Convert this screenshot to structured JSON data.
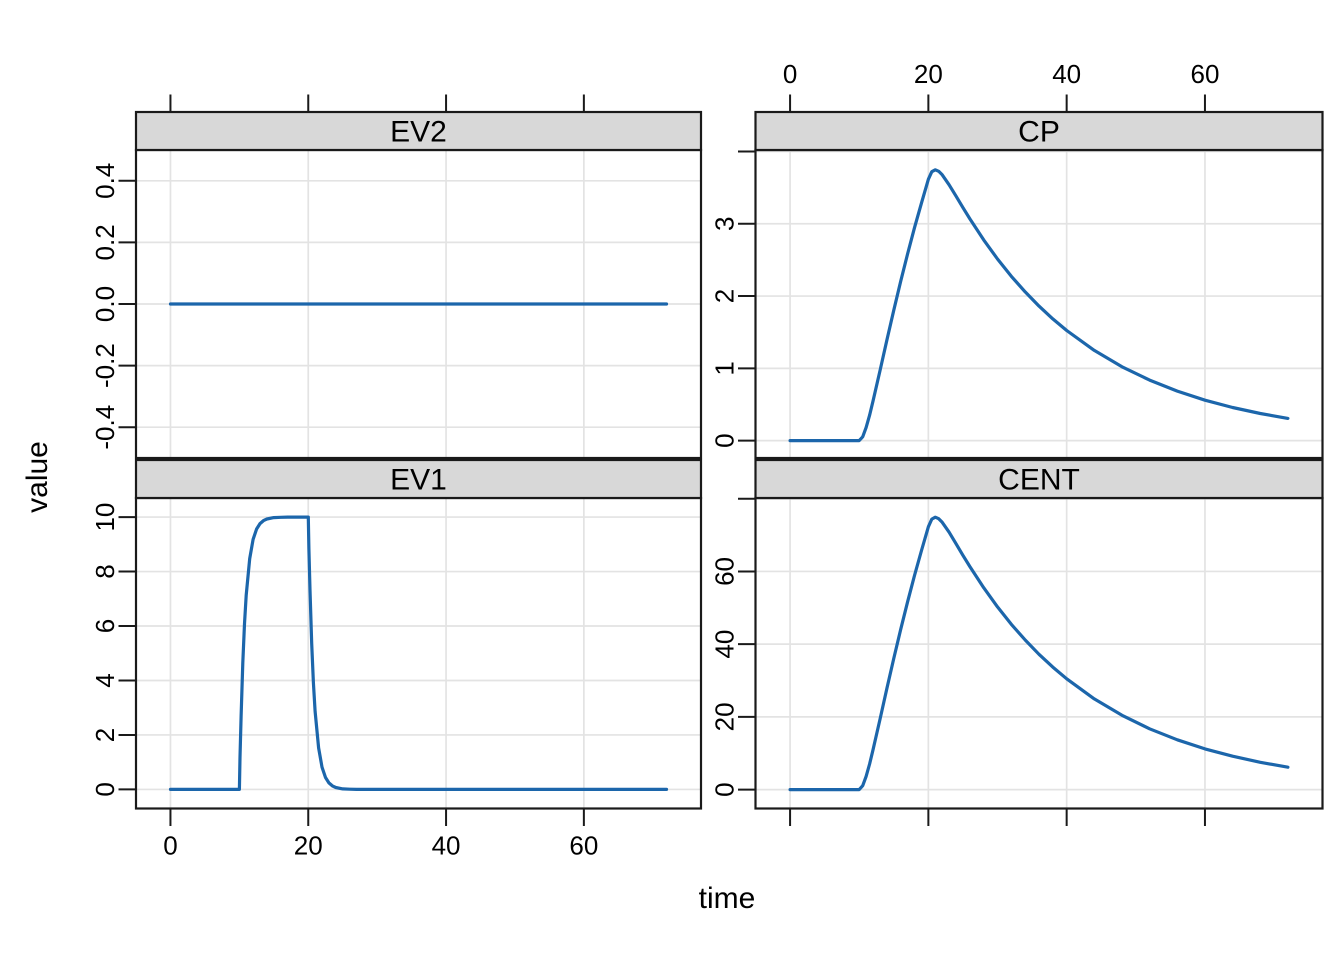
{
  "figure": {
    "xlabel": "time",
    "ylabel": "value"
  },
  "chart_data": {
    "type": "line",
    "title": "",
    "layout_hint": "2x2 lattice facets, grid on, no legend, alternating axis labels",
    "x": {
      "label": "time",
      "lim": [
        -5,
        77
      ],
      "ticks": [
        0,
        20,
        40,
        60
      ],
      "tick_labels": [
        "0",
        "20",
        "40",
        "60"
      ]
    },
    "style": {
      "line_color": "#1c66ab",
      "grid_color": "#e3e3e3",
      "strip_bg": "#d8d8d8",
      "border_color": "#1a1a1a",
      "tick_color": "#1a1a1a",
      "text_color": "#000000",
      "background": "#ffffff"
    },
    "panels": [
      {
        "name": "EV2",
        "row": 0,
        "col": 0,
        "x_axis_side": "top",
        "x_labels_shown": false,
        "ylim": [
          -0.5,
          0.5
        ],
        "y_ticks": [
          {
            "v": 0.4,
            "label": "0.4"
          },
          {
            "v": 0.2,
            "label": "0.2"
          },
          {
            "v": 0.0,
            "label": "0.0"
          },
          {
            "v": -0.2,
            "label": "-0.2"
          },
          {
            "v": -0.4,
            "label": "-0.4"
          }
        ],
        "points": [
          [
            0,
            0
          ],
          [
            72,
            0
          ]
        ]
      },
      {
        "name": "CP",
        "row": 0,
        "col": 1,
        "x_axis_side": "top",
        "x_labels_shown": true,
        "ylim": [
          -0.24,
          4.02
        ],
        "y_ticks": [
          {
            "v": 0,
            "label": "0"
          },
          {
            "v": 1,
            "label": "1"
          },
          {
            "v": 2,
            "label": "2"
          },
          {
            "v": 3,
            "label": "3"
          },
          {
            "v": 4,
            "label": ""
          }
        ],
        "points": [
          [
            0,
            0
          ],
          [
            5,
            0
          ],
          [
            9.5,
            0
          ],
          [
            10,
            0
          ],
          [
            10.5,
            0.053
          ],
          [
            11,
            0.181
          ],
          [
            11.5,
            0.352
          ],
          [
            12,
            0.547
          ],
          [
            13,
            0.967
          ],
          [
            14,
            1.392
          ],
          [
            15,
            1.806
          ],
          [
            16,
            2.204
          ],
          [
            17,
            2.583
          ],
          [
            18,
            2.945
          ],
          [
            19,
            3.289
          ],
          [
            20,
            3.616
          ],
          [
            20.5,
            3.72
          ],
          [
            21,
            3.746
          ],
          [
            21.5,
            3.725
          ],
          [
            22,
            3.677
          ],
          [
            23,
            3.539
          ],
          [
            24,
            3.382
          ],
          [
            25,
            3.223
          ],
          [
            26,
            3.067
          ],
          [
            28,
            2.776
          ],
          [
            30,
            2.512
          ],
          [
            32,
            2.273
          ],
          [
            34,
            2.057
          ],
          [
            36,
            1.861
          ],
          [
            38,
            1.684
          ],
          [
            40,
            1.524
          ],
          [
            44,
            1.248
          ],
          [
            48,
            1.022
          ],
          [
            52,
            0.837
          ],
          [
            56,
            0.685
          ],
          [
            60,
            0.56
          ],
          [
            64,
            0.459
          ],
          [
            68,
            0.376
          ],
          [
            72,
            0.308
          ]
        ]
      },
      {
        "name": "EV1",
        "row": 1,
        "col": 0,
        "x_axis_side": "bottom",
        "x_labels_shown": true,
        "ylim": [
          -0.7,
          10.7
        ],
        "y_ticks": [
          {
            "v": 0,
            "label": "0"
          },
          {
            "v": 2,
            "label": "2"
          },
          {
            "v": 4,
            "label": "4"
          },
          {
            "v": 6,
            "label": "6"
          },
          {
            "v": 8,
            "label": "8"
          },
          {
            "v": 10,
            "label": "10"
          }
        ],
        "points": [
          [
            0,
            0
          ],
          [
            5,
            0
          ],
          [
            9.9,
            0
          ],
          [
            10,
            0
          ],
          [
            10.1,
            1.18
          ],
          [
            10.25,
            2.68
          ],
          [
            10.5,
            4.65
          ],
          [
            10.75,
            6.08
          ],
          [
            11,
            7.13
          ],
          [
            11.5,
            8.47
          ],
          [
            12,
            9.18
          ],
          [
            12.5,
            9.56
          ],
          [
            13,
            9.76
          ],
          [
            13.5,
            9.87
          ],
          [
            14,
            9.93
          ],
          [
            15,
            9.98
          ],
          [
            16,
            9.99
          ],
          [
            17,
            10
          ],
          [
            20,
            10
          ],
          [
            20.1,
            8.83
          ],
          [
            20.25,
            7.32
          ],
          [
            20.5,
            5.35
          ],
          [
            20.75,
            3.92
          ],
          [
            21,
            2.87
          ],
          [
            21.5,
            1.53
          ],
          [
            22,
            0.82
          ],
          [
            22.5,
            0.44
          ],
          [
            23,
            0.24
          ],
          [
            23.5,
            0.13
          ],
          [
            24,
            0.07
          ],
          [
            25,
            0.02
          ],
          [
            26,
            0.01
          ],
          [
            27,
            0
          ],
          [
            30,
            0
          ],
          [
            40,
            0
          ],
          [
            50,
            0
          ],
          [
            60,
            0
          ],
          [
            72,
            0
          ]
        ]
      },
      {
        "name": "CENT",
        "row": 1,
        "col": 1,
        "x_axis_side": "bottom",
        "x_labels_shown": false,
        "ylim": [
          -5.2,
          80.2
        ],
        "y_ticks": [
          {
            "v": 0,
            "label": "0"
          },
          {
            "v": 20,
            "label": "20"
          },
          {
            "v": 40,
            "label": "40"
          },
          {
            "v": 60,
            "label": "60"
          },
          {
            "v": 80,
            "label": ""
          }
        ],
        "points": [
          [
            0,
            0
          ],
          [
            5,
            0
          ],
          [
            9.5,
            0
          ],
          [
            10,
            0
          ],
          [
            10.5,
            1.06
          ],
          [
            11,
            3.62
          ],
          [
            11.5,
            7.04
          ],
          [
            12,
            10.93
          ],
          [
            13,
            19.33
          ],
          [
            14,
            27.83
          ],
          [
            15,
            36.11
          ],
          [
            16,
            44.07
          ],
          [
            17,
            51.65
          ],
          [
            18,
            58.89
          ],
          [
            19,
            65.77
          ],
          [
            20,
            72.31
          ],
          [
            20.5,
            74.4
          ],
          [
            21,
            74.92
          ],
          [
            21.5,
            74.5
          ],
          [
            22,
            73.53
          ],
          [
            23,
            70.78
          ],
          [
            24,
            67.63
          ],
          [
            25,
            64.45
          ],
          [
            26,
            61.34
          ],
          [
            28,
            55.52
          ],
          [
            30,
            50.24
          ],
          [
            32,
            45.46
          ],
          [
            34,
            41.14
          ],
          [
            36,
            37.22
          ],
          [
            38,
            33.68
          ],
          [
            40,
            30.47
          ],
          [
            44,
            24.95
          ],
          [
            48,
            20.43
          ],
          [
            52,
            16.73
          ],
          [
            56,
            13.69
          ],
          [
            60,
            11.2
          ],
          [
            64,
            9.18
          ],
          [
            68,
            7.51
          ],
          [
            72,
            6.15
          ]
        ]
      }
    ]
  }
}
